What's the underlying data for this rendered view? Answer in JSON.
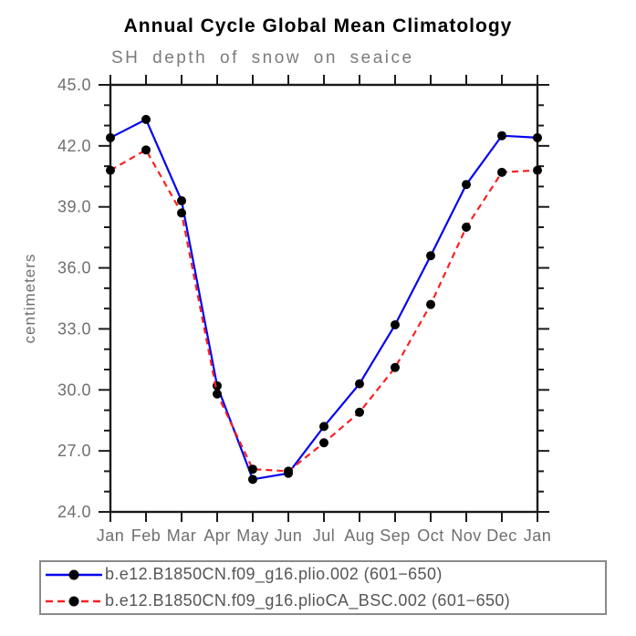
{
  "chart": {
    "title": "Annual Cycle Global Mean Climatology",
    "subtitle": "SH depth of snow on seaice",
    "ylabel": "centimeters"
  },
  "chart_data": {
    "type": "line",
    "title": "Annual Cycle Global Mean Climatology",
    "subtitle": "SH depth of snow on seaice",
    "xlabel": "",
    "ylabel": "centimeters",
    "categories": [
      "Jan",
      "Feb",
      "Mar",
      "Apr",
      "May",
      "Jun",
      "Jul",
      "Aug",
      "Sep",
      "Oct",
      "Nov",
      "Dec",
      "Jan"
    ],
    "ylim": [
      24.0,
      45.0
    ],
    "y_major_step": 3.0,
    "y_minor_step": 1.0,
    "y_tick_labels": [
      "45.0",
      "42.0",
      "39.0",
      "36.0",
      "33.0",
      "30.0",
      "27.0",
      "24.0"
    ],
    "grid": false,
    "legend_position": "bottom",
    "frame_color": "#1a1a1a",
    "label_color": "#6f6f6f",
    "marker": "filled-circle",
    "marker_color": "#000000",
    "series": [
      {
        "name": "b.e12.B1850CN.f09_g16.plio.002 (601−650)",
        "color": "#0505f0",
        "style": "solid",
        "values": [
          42.4,
          43.3,
          39.3,
          30.2,
          25.6,
          25.9,
          28.2,
          30.3,
          33.2,
          36.6,
          40.1,
          42.5,
          42.4
        ]
      },
      {
        "name": "b.e12.B1850CN.f09_g16.plioCA_BSC.002 (601−650)",
        "color": "#fb2020",
        "style": "dashed",
        "values": [
          40.8,
          41.8,
          38.7,
          29.8,
          26.1,
          26.0,
          27.4,
          28.9,
          31.1,
          34.2,
          38.0,
          40.7,
          40.8
        ]
      }
    ]
  }
}
